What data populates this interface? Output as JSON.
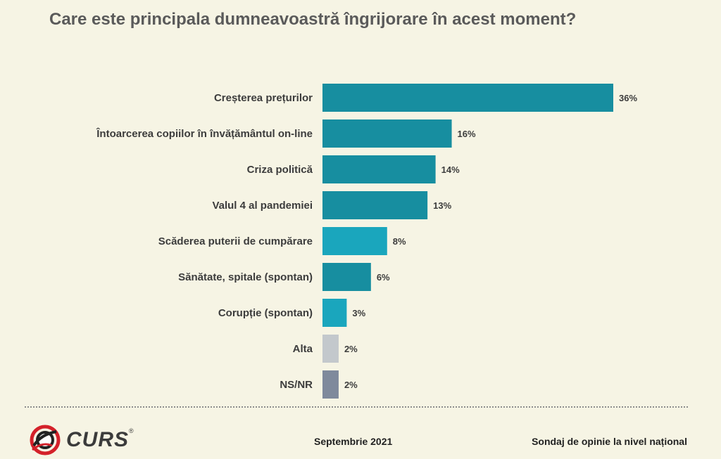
{
  "title": "Care este principala dumneavoastră îngrijorare în acest moment?",
  "chart_data": {
    "type": "bar",
    "orientation": "horizontal",
    "categories": [
      "Creșterea prețurilor",
      "Întoarcerea copiilor în învățământul on-line",
      "Criza politică",
      "Valul 4 al pandemiei",
      "Scăderea puterii de cumpărare",
      "Sănătate, spitale (spontan)",
      "Corupție (spontan)",
      "Alta",
      "NS/NR"
    ],
    "values": [
      36,
      16,
      14,
      13,
      8,
      6,
      3,
      2,
      2
    ],
    "value_labels": [
      "36%",
      "16%",
      "14%",
      "13%",
      "8%",
      "6%",
      "3%",
      "2%",
      "2%"
    ],
    "colors": [
      "#178ea0",
      "#178ea0",
      "#178ea0",
      "#178ea0",
      "#1aa6bd",
      "#178ea0",
      "#1aa6bd",
      "#c3c8cc",
      "#7f8a9c"
    ],
    "xlim": [
      0,
      36
    ],
    "grid": false,
    "legend": "none"
  },
  "footer": {
    "logo_text": "CURS",
    "logo_reg": "®",
    "date": "Septembrie 2021",
    "source": "Sondaj de opinie la nivel național"
  }
}
